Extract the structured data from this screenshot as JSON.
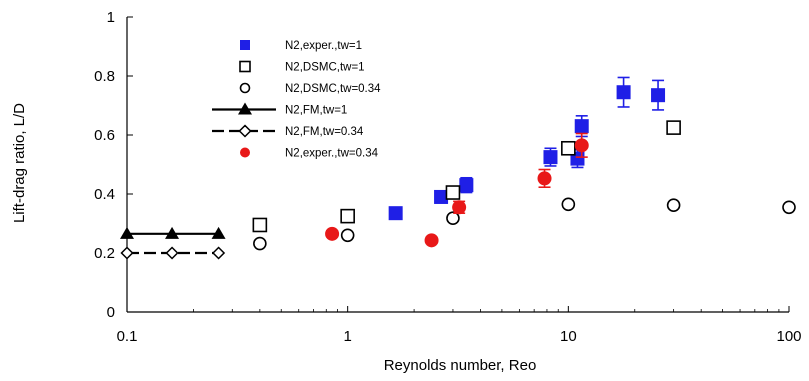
{
  "chart_data": {
    "type": "scatter",
    "xscale": "log",
    "xlabel": "Reynolds number, Reo",
    "ylabel": "Lift-drag ratio, L/D",
    "xlim": [
      0.1,
      100
    ],
    "ylim": [
      0,
      1
    ],
    "xticks": [
      0.1,
      1,
      10,
      100
    ],
    "xtick_labels": [
      "0.1",
      "1",
      "10",
      "100"
    ],
    "yticks": [
      0,
      0.2,
      0.4,
      0.6,
      0.8,
      1
    ],
    "ytick_labels": [
      "0",
      "0.2",
      "0.4",
      "0.6",
      "0.8",
      "1"
    ],
    "grid": false,
    "legend_position": "top-left",
    "series": [
      {
        "name": "N2,exper.,tw=1",
        "marker": "filled-square",
        "color": "#1f1fe6",
        "points": [
          {
            "x": 1.65,
            "y": 0.335,
            "err": 0.015
          },
          {
            "x": 2.65,
            "y": 0.39,
            "err": 0.02
          },
          {
            "x": 3.45,
            "y": 0.43,
            "err": 0.025
          },
          {
            "x": 8.3,
            "y": 0.525,
            "err": 0.03
          },
          {
            "x": 11.0,
            "y": 0.52,
            "err": 0.03
          },
          {
            "x": 11.5,
            "y": 0.63,
            "err": 0.035
          },
          {
            "x": 17.8,
            "y": 0.745,
            "err": 0.05
          },
          {
            "x": 25.5,
            "y": 0.735,
            "err": 0.05
          }
        ]
      },
      {
        "name": "N2,DSMC,tw=1",
        "marker": "open-square",
        "color": "#000000",
        "points": [
          {
            "x": 0.4,
            "y": 0.295
          },
          {
            "x": 1.0,
            "y": 0.325
          },
          {
            "x": 3.0,
            "y": 0.405
          },
          {
            "x": 10.0,
            "y": 0.555
          },
          {
            "x": 30.0,
            "y": 0.625
          }
        ]
      },
      {
        "name": "N2,DSMC,tw=0.34",
        "marker": "open-circle",
        "color": "#000000",
        "points": [
          {
            "x": 0.4,
            "y": 0.232
          },
          {
            "x": 1.0,
            "y": 0.26
          },
          {
            "x": 3.0,
            "y": 0.318
          },
          {
            "x": 10.0,
            "y": 0.365
          },
          {
            "x": 30.0,
            "y": 0.362
          },
          {
            "x": 100.0,
            "y": 0.355
          }
        ]
      },
      {
        "name": "N2,FM,tw=1",
        "marker": "filled-triangle",
        "line": "solid",
        "color": "#000000",
        "points": [
          {
            "x": 0.1,
            "y": 0.265
          },
          {
            "x": 0.16,
            "y": 0.265
          },
          {
            "x": 0.26,
            "y": 0.265
          }
        ]
      },
      {
        "name": "N2,FM,tw=0.34",
        "marker": "open-diamond",
        "line": "dashed",
        "color": "#000000",
        "points": [
          {
            "x": 0.1,
            "y": 0.2
          },
          {
            "x": 0.16,
            "y": 0.2
          },
          {
            "x": 0.26,
            "y": 0.2
          }
        ]
      },
      {
        "name": "N2,exper.,tw=0.34",
        "marker": "filled-circle",
        "color": "#e81818",
        "points": [
          {
            "x": 0.85,
            "y": 0.265,
            "err": 0.01
          },
          {
            "x": 2.4,
            "y": 0.243,
            "err": 0.01
          },
          {
            "x": 3.2,
            "y": 0.355,
            "err": 0.02
          },
          {
            "x": 7.8,
            "y": 0.453,
            "err": 0.03
          },
          {
            "x": 11.5,
            "y": 0.565,
            "err": 0.04
          }
        ]
      }
    ]
  }
}
